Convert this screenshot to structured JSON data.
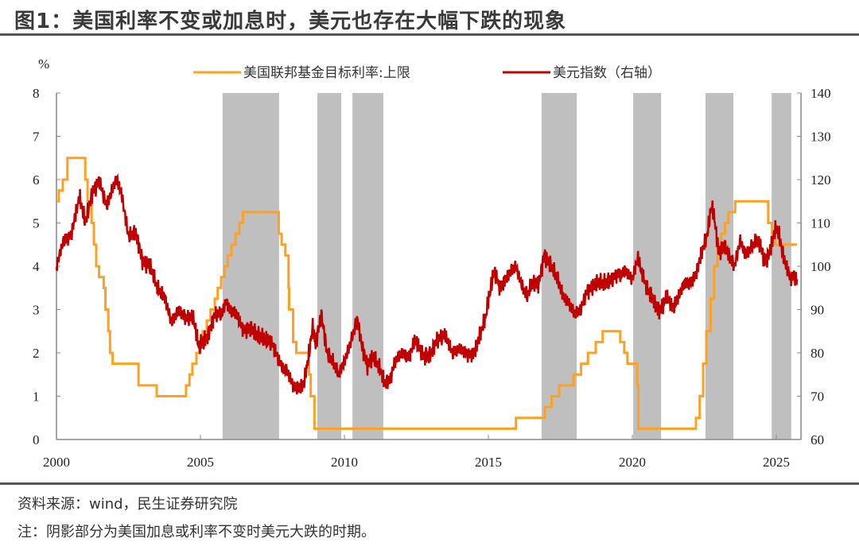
{
  "title": "图1：美国利率不变或加息时，美元也存在大幅下跌的现象",
  "source": "资料来源：wind，民生证券研究院",
  "note": "注：阴影部分为美国加息或利率不变时美元大跌的时期。",
  "chart_data": {
    "type": "line",
    "left_unit": "%",
    "x_ticks": [
      "2000",
      "2005",
      "2010",
      "2015",
      "2020",
      "2025"
    ],
    "x_range": [
      2000,
      2025.75
    ],
    "ylim_left": [
      0,
      8
    ],
    "yticks_left": [
      "0",
      "1",
      "2",
      "3",
      "4",
      "5",
      "6",
      "7",
      "8"
    ],
    "ylim_right": [
      60,
      140
    ],
    "yticks_right": [
      "60",
      "70",
      "80",
      "90",
      "100",
      "110",
      "120",
      "130",
      "140"
    ],
    "legend_position": "top",
    "grid": false,
    "colors": {
      "fed": "#FFA020",
      "dxy": "#C00000",
      "shade": "#BFBFBF"
    },
    "shaded_periods": [
      [
        2005.77,
        2007.73
      ],
      [
        2009.06,
        2009.89
      ],
      [
        2010.28,
        2011.35
      ],
      [
        2016.85,
        2018.07
      ],
      [
        2020.03,
        2021.0
      ],
      [
        2022.54,
        2023.51
      ],
      [
        2024.84,
        2025.52
      ]
    ],
    "series": [
      {
        "name": "美国联邦基金目标利率:上限",
        "axis": "left",
        "step": true,
        "points": [
          [
            2000,
            5.5
          ],
          [
            2000.08,
            5.75
          ],
          [
            2000.22,
            6.0
          ],
          [
            2000.38,
            6.5
          ],
          [
            2001.0,
            6.0
          ],
          [
            2001.08,
            5.5
          ],
          [
            2001.22,
            5.0
          ],
          [
            2001.3,
            4.5
          ],
          [
            2001.38,
            4.0
          ],
          [
            2001.48,
            3.75
          ],
          [
            2001.64,
            3.5
          ],
          [
            2001.7,
            3.0
          ],
          [
            2001.8,
            2.5
          ],
          [
            2001.86,
            2.0
          ],
          [
            2001.95,
            1.75
          ],
          [
            2002.85,
            1.25
          ],
          [
            2003.48,
            1.0
          ],
          [
            2004.5,
            1.25
          ],
          [
            2004.62,
            1.5
          ],
          [
            2004.72,
            1.75
          ],
          [
            2004.86,
            2.0
          ],
          [
            2004.96,
            2.25
          ],
          [
            2005.08,
            2.5
          ],
          [
            2005.22,
            2.75
          ],
          [
            2005.35,
            3.0
          ],
          [
            2005.5,
            3.25
          ],
          [
            2005.6,
            3.5
          ],
          [
            2005.72,
            3.75
          ],
          [
            2005.84,
            4.0
          ],
          [
            2005.95,
            4.25
          ],
          [
            2006.08,
            4.5
          ],
          [
            2006.22,
            4.75
          ],
          [
            2006.35,
            5.0
          ],
          [
            2006.48,
            5.25
          ],
          [
            2007.72,
            4.75
          ],
          [
            2007.82,
            4.5
          ],
          [
            2007.95,
            4.25
          ],
          [
            2008.06,
            3.5
          ],
          [
            2008.08,
            3.0
          ],
          [
            2008.22,
            2.25
          ],
          [
            2008.33,
            2.0
          ],
          [
            2008.77,
            1.5
          ],
          [
            2008.83,
            1.0
          ],
          [
            2008.96,
            0.25
          ],
          [
            2015.96,
            0.5
          ],
          [
            2016.96,
            0.75
          ],
          [
            2017.2,
            1.0
          ],
          [
            2017.46,
            1.25
          ],
          [
            2017.96,
            1.5
          ],
          [
            2018.22,
            1.75
          ],
          [
            2018.46,
            2.0
          ],
          [
            2018.73,
            2.25
          ],
          [
            2018.97,
            2.5
          ],
          [
            2019.58,
            2.25
          ],
          [
            2019.72,
            2.0
          ],
          [
            2019.83,
            1.75
          ],
          [
            2020.17,
            1.25
          ],
          [
            2020.21,
            0.25
          ],
          [
            2022.21,
            0.5
          ],
          [
            2022.34,
            1.0
          ],
          [
            2022.46,
            1.75
          ],
          [
            2022.57,
            2.5
          ],
          [
            2022.72,
            3.25
          ],
          [
            2022.84,
            4.0
          ],
          [
            2022.96,
            4.5
          ],
          [
            2023.09,
            4.75
          ],
          [
            2023.22,
            5.0
          ],
          [
            2023.34,
            5.25
          ],
          [
            2023.57,
            5.5
          ],
          [
            2024.72,
            5.0
          ],
          [
            2024.85,
            4.75
          ],
          [
            2024.96,
            4.5
          ],
          [
            2025.72,
            4.5
          ]
        ]
      },
      {
        "name": "美元指数（右轴）",
        "axis": "right",
        "step": false,
        "points": [
          [
            2000,
            100
          ],
          [
            2000.25,
            106
          ],
          [
            2000.5,
            107
          ],
          [
            2000.8,
            116
          ],
          [
            2001,
            110
          ],
          [
            2001.25,
            117
          ],
          [
            2001.5,
            120
          ],
          [
            2001.6,
            117
          ],
          [
            2001.75,
            114
          ],
          [
            2002,
            119
          ],
          [
            2002.1,
            120
          ],
          [
            2002.25,
            117
          ],
          [
            2002.5,
            107
          ],
          [
            2002.75,
            108
          ],
          [
            2003,
            101
          ],
          [
            2003.25,
            100
          ],
          [
            2003.5,
            95
          ],
          [
            2003.75,
            93
          ],
          [
            2004,
            87
          ],
          [
            2004.25,
            90
          ],
          [
            2004.5,
            88
          ],
          [
            2004.75,
            88
          ],
          [
            2004.95,
            81
          ],
          [
            2005,
            82
          ],
          [
            2005.25,
            84
          ],
          [
            2005.5,
            89
          ],
          [
            2005.75,
            89
          ],
          [
            2005.9,
            92
          ],
          [
            2006,
            90
          ],
          [
            2006.25,
            89
          ],
          [
            2006.5,
            85
          ],
          [
            2006.75,
            86
          ],
          [
            2007,
            84
          ],
          [
            2007.25,
            83
          ],
          [
            2007.5,
            82
          ],
          [
            2007.75,
            78
          ],
          [
            2007.9,
            76
          ],
          [
            2008,
            76
          ],
          [
            2008.25,
            72
          ],
          [
            2008.5,
            72
          ],
          [
            2008.6,
            73
          ],
          [
            2008.75,
            79
          ],
          [
            2008.9,
            86
          ],
          [
            2009,
            82
          ],
          [
            2009.2,
            89
          ],
          [
            2009.4,
            80
          ],
          [
            2009.6,
            78
          ],
          [
            2009.8,
            75
          ],
          [
            2010,
            78
          ],
          [
            2010.2,
            82
          ],
          [
            2010.45,
            88
          ],
          [
            2010.6,
            82
          ],
          [
            2010.8,
            77
          ],
          [
            2011,
            79
          ],
          [
            2011.25,
            76
          ],
          [
            2011.4,
            73
          ],
          [
            2011.6,
            74
          ],
          [
            2011.75,
            78
          ],
          [
            2012,
            80
          ],
          [
            2012.25,
            79
          ],
          [
            2012.45,
            83
          ],
          [
            2012.6,
            81
          ],
          [
            2012.75,
            79
          ],
          [
            2013,
            80
          ],
          [
            2013.2,
            83
          ],
          [
            2013.5,
            84
          ],
          [
            2013.75,
            80
          ],
          [
            2014,
            81
          ],
          [
            2014.3,
            79.5
          ],
          [
            2014.5,
            80
          ],
          [
            2014.7,
            84
          ],
          [
            2014.9,
            88
          ],
          [
            2015,
            92
          ],
          [
            2015.2,
            99
          ],
          [
            2015.4,
            95
          ],
          [
            2015.6,
            97
          ],
          [
            2015.8,
            99
          ],
          [
            2015.95,
            100
          ],
          [
            2016,
            99
          ],
          [
            2016.2,
            95
          ],
          [
            2016.35,
            93
          ],
          [
            2016.5,
            96
          ],
          [
            2016.75,
            96
          ],
          [
            2016.95,
            103
          ],
          [
            2017,
            102
          ],
          [
            2017.2,
            100
          ],
          [
            2017.4,
            97
          ],
          [
            2017.6,
            93
          ],
          [
            2017.75,
            92
          ],
          [
            2018,
            89
          ],
          [
            2018.2,
            90
          ],
          [
            2018.4,
            94
          ],
          [
            2018.6,
            95
          ],
          [
            2018.8,
            96
          ],
          [
            2019,
            96
          ],
          [
            2019.25,
            97
          ],
          [
            2019.45,
            98
          ],
          [
            2019.6,
            98
          ],
          [
            2019.75,
            99
          ],
          [
            2020,
            97
          ],
          [
            2020.2,
            102
          ],
          [
            2020.3,
            99
          ],
          [
            2020.5,
            95
          ],
          [
            2020.7,
            93
          ],
          [
            2020.9,
            90
          ],
          [
            2021,
            90
          ],
          [
            2021.2,
            93
          ],
          [
            2021.4,
            90
          ],
          [
            2021.6,
            93
          ],
          [
            2021.8,
            96
          ],
          [
            2022,
            96
          ],
          [
            2022.2,
            98
          ],
          [
            2022.4,
            103
          ],
          [
            2022.6,
            107
          ],
          [
            2022.75,
            114
          ],
          [
            2022.85,
            111
          ],
          [
            2023,
            103
          ],
          [
            2023.2,
            105
          ],
          [
            2023.4,
            102
          ],
          [
            2023.55,
            100
          ],
          [
            2023.75,
            106
          ],
          [
            2023.9,
            103
          ],
          [
            2024,
            103
          ],
          [
            2024.3,
            106
          ],
          [
            2024.45,
            105
          ],
          [
            2024.6,
            101
          ],
          [
            2024.75,
            103
          ],
          [
            2024.95,
            108
          ],
          [
            2025,
            109
          ],
          [
            2025.1,
            107
          ],
          [
            2025.25,
            102
          ],
          [
            2025.4,
            99
          ],
          [
            2025.5,
            97
          ],
          [
            2025.6,
            98
          ],
          [
            2025.72,
            97
          ]
        ]
      }
    ]
  }
}
